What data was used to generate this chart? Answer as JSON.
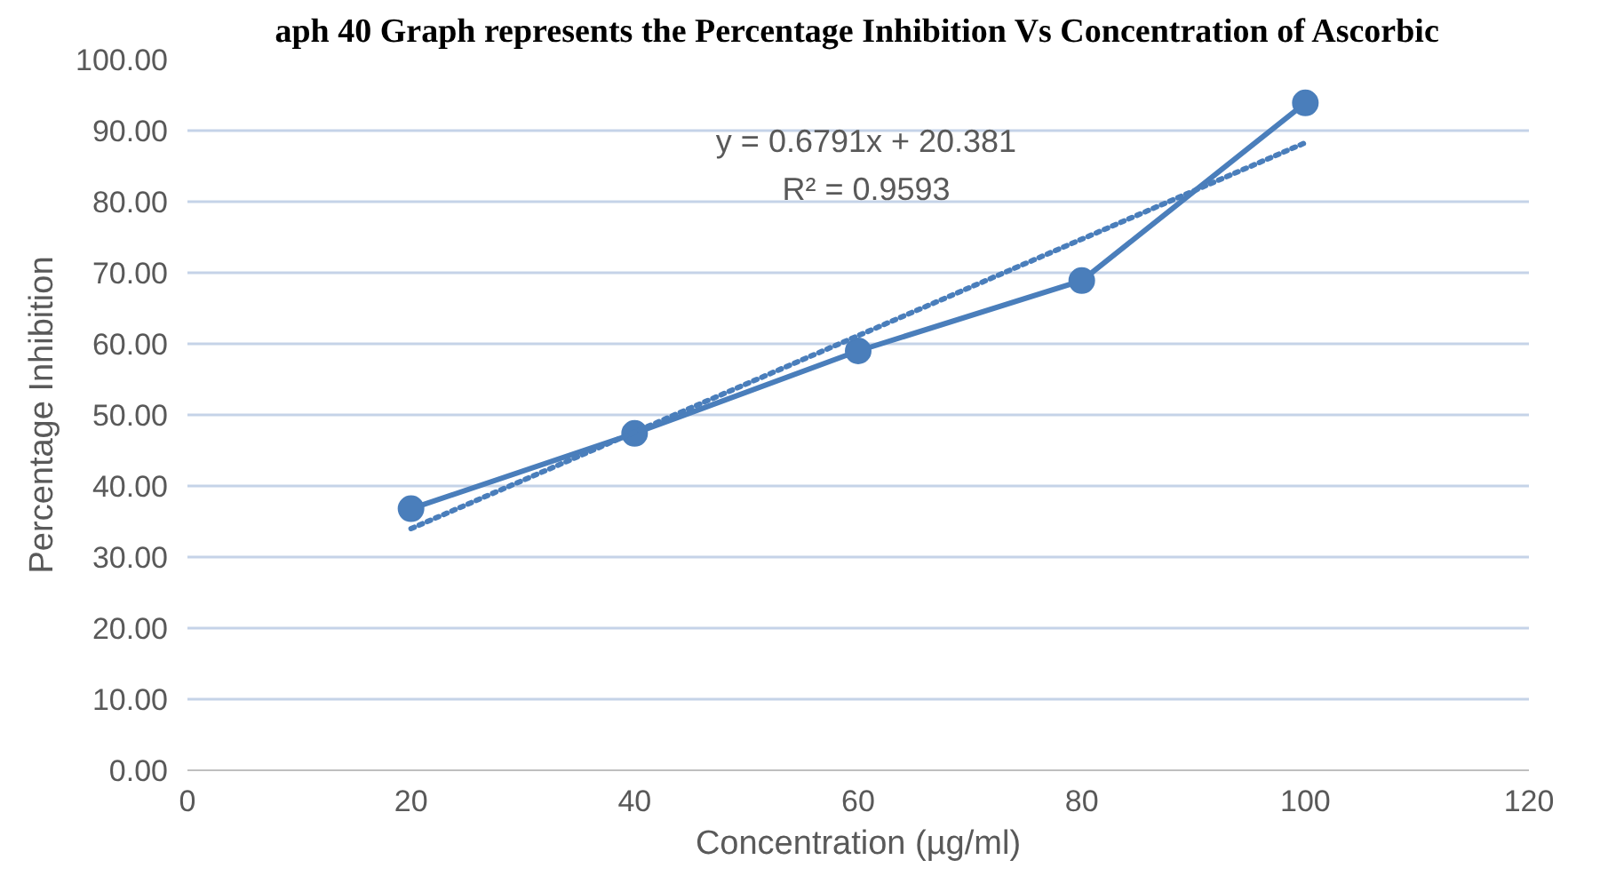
{
  "chart_data": {
    "type": "line",
    "title": "aph 40 Graph represents the Percentage Inhibition Vs Concentration of Ascorbic",
    "xlabel": "Concentration (µg/ml)",
    "ylabel": "Percentage Inhibition",
    "x": [
      20,
      40,
      60,
      80,
      100
    ],
    "series": [
      {
        "color": "#4a7ebb",
        "values": [
          36.8,
          47.4,
          59.0,
          68.9,
          93.9
        ],
        "marker": "circle",
        "line_style": "solid"
      },
      {
        "type": "line",
        "x": [
          20,
          100
        ],
        "color": "#4a7ebb",
        "values": [
          34.0,
          88.3
        ],
        "marker": "none",
        "line_style": "dotted"
      }
    ],
    "annotations": [
      "y = 0.6791x + 20.381",
      "R² = 0.9593"
    ],
    "xlim": [
      0,
      120
    ],
    "xticks": [
      0,
      20,
      40,
      60,
      80,
      100,
      120
    ],
    "ylim": [
      0,
      100
    ],
    "yticks": [
      {
        "value": 0,
        "label": "0.00"
      },
      {
        "value": 10,
        "label": "10.00"
      },
      {
        "value": 20,
        "label": "20.00"
      },
      {
        "value": 30,
        "label": "30.00"
      },
      {
        "value": 40,
        "label": "40.00"
      },
      {
        "value": 50,
        "label": "50.00"
      },
      {
        "value": 60,
        "label": "60.00"
      },
      {
        "value": 70,
        "label": "70.00"
      },
      {
        "value": 80,
        "label": "80.00"
      },
      {
        "value": 90,
        "label": "90.00"
      },
      {
        "value": 100,
        "label": "100.00"
      }
    ],
    "grid": "y"
  }
}
